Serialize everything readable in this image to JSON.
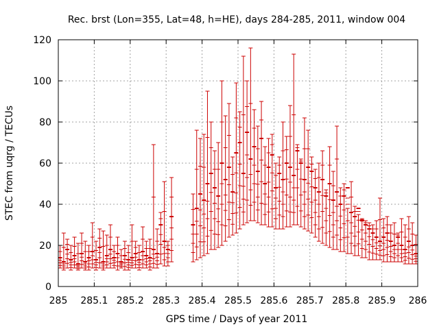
{
  "chart_data": {
    "type": "scatter",
    "title": "Rec. brst (Lon=355, Lat=48, h=HE), days 284-285, 2011, window 004",
    "xlabel": "GPS time / Days of year 2011",
    "ylabel": "STEC from uqrg / TECUs",
    "xlim": [
      285,
      286
    ],
    "ylim": [
      0,
      120
    ],
    "x_ticks": [
      "285",
      "285.1",
      "285.2",
      "285.3",
      "285.4",
      "285.5",
      "285.6",
      "285.7",
      "285.8",
      "285.9",
      "286"
    ],
    "y_ticks": [
      "0",
      "20",
      "40",
      "60",
      "80",
      "100",
      "120"
    ],
    "grid": true,
    "legend": "none",
    "color": "#cc0000",
    "series": [
      {
        "x": [
          285.005,
          285.015,
          285.025,
          285.035,
          285.045,
          285.055,
          285.065,
          285.075,
          285.085,
          285.095,
          285.105,
          285.115,
          285.125,
          285.135,
          285.145,
          285.155,
          285.165,
          285.175,
          285.185,
          285.195,
          285.205,
          285.215,
          285.225,
          285.235,
          285.245,
          285.255,
          285.265,
          285.275,
          285.285,
          285.295,
          285.305,
          285.315,
          285.375,
          285.385,
          285.395,
          285.405,
          285.415,
          285.425,
          285.435,
          285.445,
          285.455,
          285.465,
          285.475,
          285.485,
          285.495,
          285.505,
          285.515,
          285.525,
          285.535,
          285.545,
          285.555,
          285.565,
          285.575,
          285.585,
          285.595,
          285.605,
          285.615,
          285.625,
          285.635,
          285.645,
          285.655,
          285.665,
          285.675,
          285.685,
          285.695,
          285.705,
          285.715,
          285.725,
          285.735,
          285.745,
          285.755,
          285.765,
          285.775,
          285.785,
          285.795,
          285.805,
          285.815,
          285.825,
          285.835,
          285.845,
          285.855,
          285.865,
          285.875,
          285.885,
          285.895,
          285.905,
          285.915,
          285.925,
          285.935,
          285.945,
          285.955,
          285.965,
          285.975,
          285.985,
          285.995
        ],
        "y": [
          14,
          12,
          18,
          13,
          15,
          11,
          16,
          12,
          14,
          17,
          13,
          19,
          12,
          15,
          18,
          14,
          16,
          12,
          15,
          13,
          14,
          16,
          13,
          17,
          15,
          14,
          18,
          16,
          30,
          22,
          18,
          34,
          30,
          38,
          45,
          42,
          50,
          55,
          48,
          44,
          60,
          52,
          58,
          46,
          65,
          70,
          55,
          75,
          62,
          68,
          56,
          72,
          50,
          58,
          64,
          48,
          55,
          52,
          60,
          58,
          54,
          66,
          60,
          52,
          58,
          56,
          48,
          46,
          52,
          44,
          50,
          42,
          46,
          40,
          44,
          48,
          36,
          34,
          38,
          32,
          30,
          28,
          26,
          24,
          22,
          24,
          26,
          22,
          20,
          24,
          20,
          18,
          22,
          20,
          16
        ],
        "y_low": [
          9,
          8,
          9,
          8,
          9,
          8,
          9,
          8,
          8,
          9,
          8,
          9,
          8,
          9,
          9,
          9,
          8,
          9,
          8,
          8,
          9,
          9,
          8,
          9,
          9,
          8,
          9,
          9,
          11,
          10,
          10,
          12,
          12,
          13,
          14,
          15,
          16,
          18,
          18,
          19,
          20,
          22,
          24,
          25,
          26,
          28,
          30,
          31,
          32,
          32,
          31,
          30,
          30,
          29,
          29,
          28,
          28,
          28,
          29,
          29,
          30,
          30,
          29,
          28,
          27,
          26,
          24,
          22,
          21,
          20,
          19,
          18,
          18,
          17,
          17,
          16,
          16,
          15,
          15,
          14,
          14,
          13,
          13,
          13,
          13,
          12,
          12,
          12,
          12,
          12,
          12,
          11,
          11,
          11,
          11
        ],
        "y_high": [
          20,
          26,
          23,
          20,
          24,
          21,
          26,
          22,
          20,
          31,
          22,
          28,
          27,
          25,
          30,
          20,
          24,
          18,
          22,
          20,
          30,
          22,
          20,
          29,
          22,
          23,
          69,
          28,
          36,
          51,
          22,
          53,
          45,
          76,
          72,
          74,
          95,
          80,
          66,
          70,
          100,
          83,
          89,
          63,
          99,
          85,
          112,
          100,
          116,
          86,
          78,
          90,
          68,
          72,
          74,
          60,
          63,
          80,
          73,
          88,
          113,
          69,
          62,
          82,
          76,
          63,
          57,
          60,
          66,
          47,
          68,
          56,
          78,
          48,
          50,
          38,
          51,
          39,
          35,
          33,
          32,
          31,
          30,
          32,
          43,
          33,
          34,
          30,
          31,
          26,
          33,
          30,
          34,
          31,
          25
        ]
      }
    ]
  }
}
